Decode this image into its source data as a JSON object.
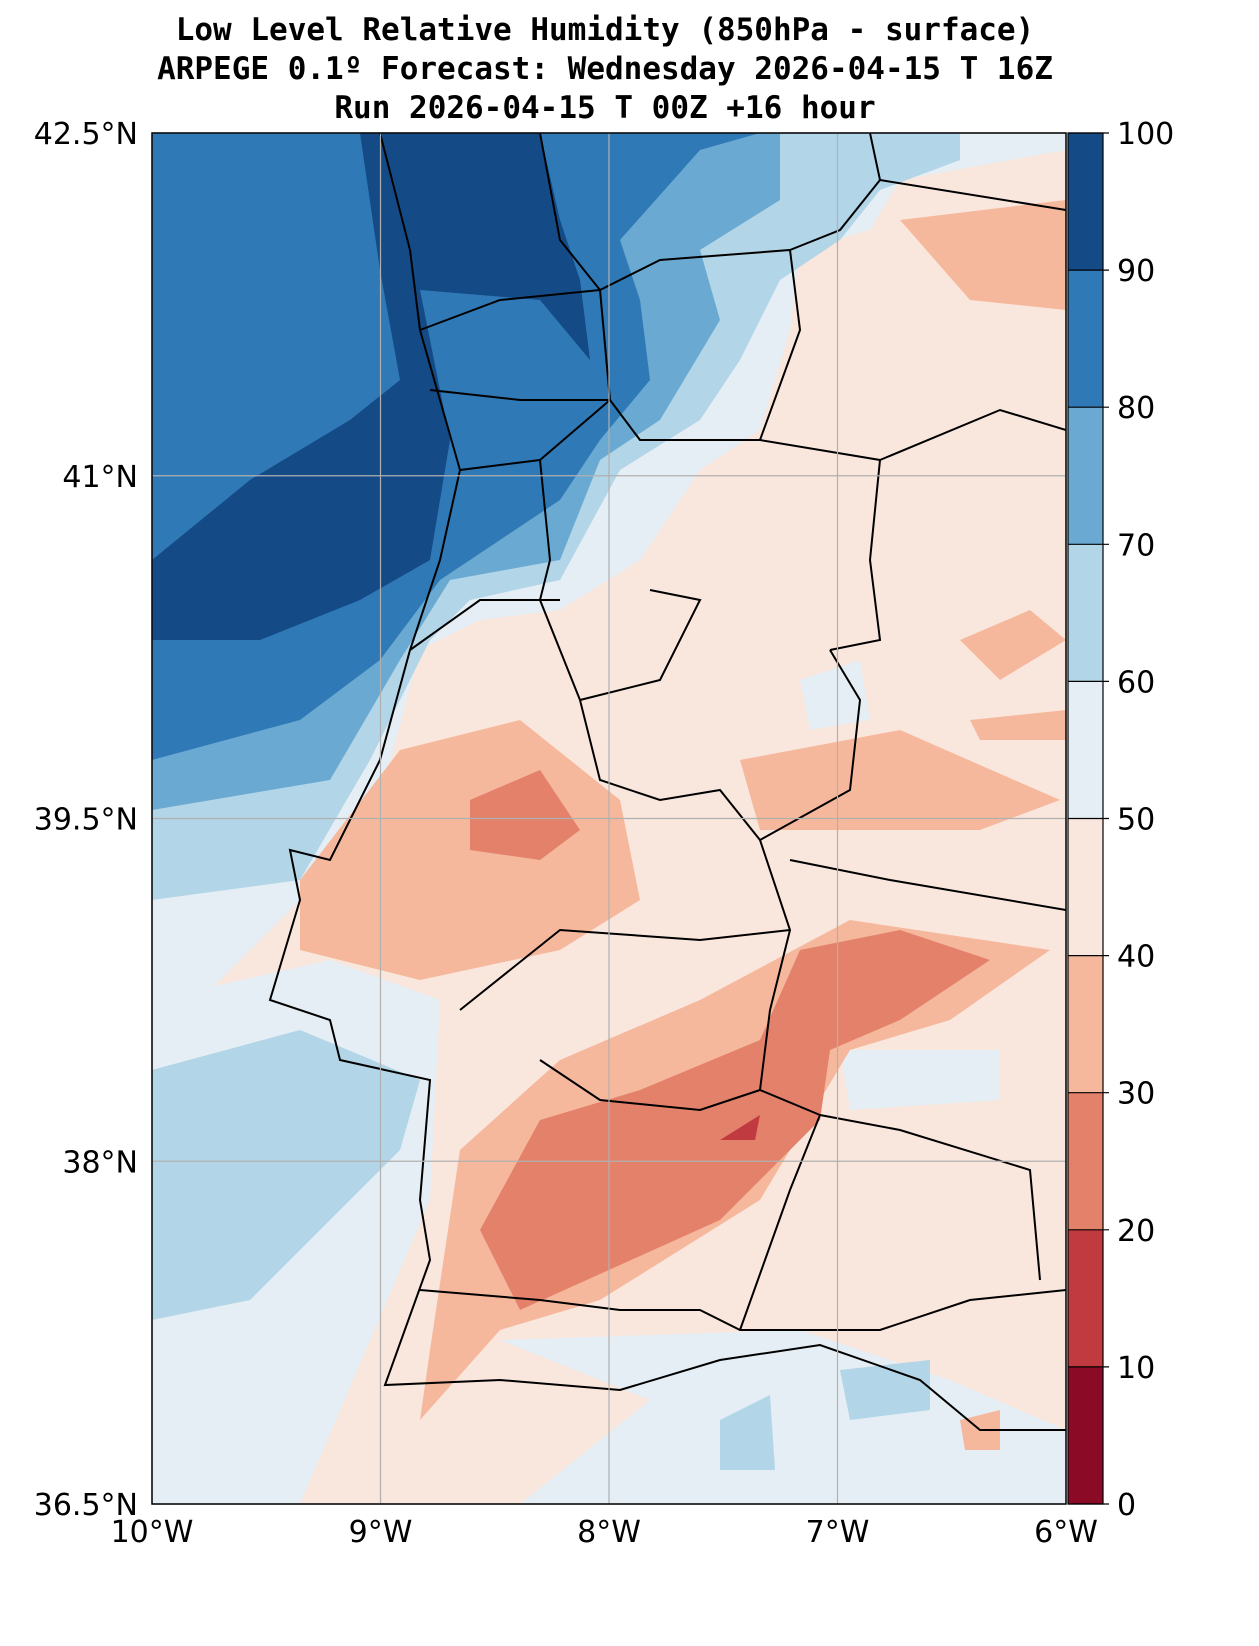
{
  "title_lines": [
    "Low Level Relative Humidity (850hPa - surface)",
    "ARPEGE 0.1º Forecast: Wednesday 2026-04-15 T 16Z",
    "Run 2026-04-15 T 00Z +16 hour"
  ],
  "chart_data": {
    "type": "heatmap",
    "variable": "Low Level Relative Humidity (%)",
    "xlim": [
      -10,
      -6
    ],
    "ylim": [
      36.5,
      42.5
    ],
    "x_ticks": [
      -10,
      -9,
      -8,
      -7,
      -6
    ],
    "x_tick_labels": [
      "10°W",
      "9°W",
      "8°W",
      "7°W",
      "6°W"
    ],
    "y_ticks": [
      42.5,
      41,
      39.5,
      38,
      36.5
    ],
    "y_tick_labels": [
      "42.5°N",
      "41°N",
      "39.5°N",
      "38°N",
      "36.5°N"
    ],
    "grid": true,
    "colorbar": {
      "levels": [
        0,
        10,
        20,
        30,
        40,
        50,
        60,
        70,
        80,
        90,
        100
      ],
      "labels": [
        "0",
        "10",
        "20",
        "30",
        "40",
        "50",
        "60",
        "70",
        "80",
        "90",
        "100"
      ],
      "colors": [
        "#8b0a26",
        "#c13a3f",
        "#e3816b",
        "#f6b89c",
        "#f9e6dd",
        "#e5eef4",
        "#b2d5e7",
        "#6aaad2",
        "#2f79b6",
        "#144a86"
      ],
      "placement": "right"
    }
  }
}
